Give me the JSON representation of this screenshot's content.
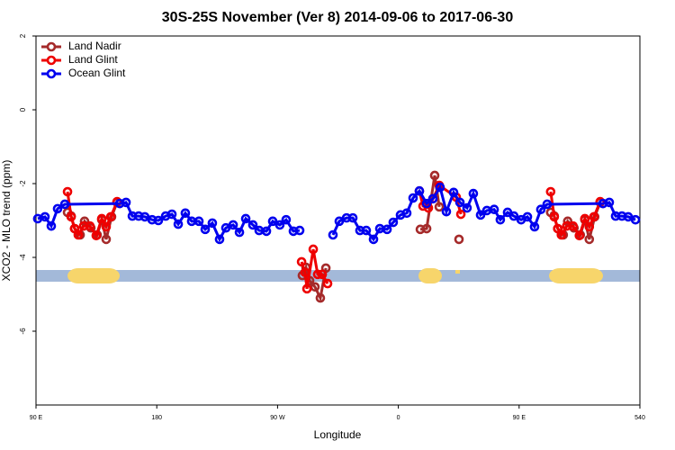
{
  "chart_data": {
    "type": "line",
    "title": "30S-25S November (Ver 8)   2014-09-06 to 2017-06-30",
    "x_label": "Longitude",
    "y_label": "XCO2 - MLO trend (ppm)",
    "xlim": [
      90,
      540
    ],
    "ylim": [
      -8,
      2
    ],
    "xticks": [
      {
        "value": 90,
        "label": "90 E"
      },
      180,
      {
        "value": 270,
        "label": "90 W"
      },
      {
        "value": 360,
        "label": "0"
      },
      {
        "value": 450,
        "label": "90 E"
      },
      540
    ],
    "yticks": [
      2,
      0,
      -2,
      -4,
      -6
    ],
    "legend": "top-left",
    "series": [
      {
        "name": "Land Nadir",
        "color": "#a52a2a",
        "x": [
          113.5,
          116.2,
          118.8,
          122.9,
          126.2,
          130.9,
          135.6,
          139,
          142.3,
          146.3,
          150.4,
          null,
          288.5,
          291.2,
          293.9,
          297.9,
          301.9,
          306,
          null,
          376.4,
          381.1,
          387.1,
          390.5,
          null,
          405.2,
          null,
          473.5,
          476.2,
          478.8,
          482.9,
          486.2,
          490.9,
          495.6,
          499,
          502.3,
          506.3,
          510.4
        ],
        "values": [
          -2.78,
          -2.88,
          -3.22,
          -3.39,
          -3.02,
          -3.2,
          -3.39,
          -2.98,
          -3.51,
          -2.9,
          -2.51,
          null,
          -4.49,
          -4.27,
          -4.63,
          -4.8,
          -5.1,
          -4.29,
          null,
          -3.24,
          -3.22,
          -1.78,
          -2.63,
          null,
          -3.51,
          null,
          -2.78,
          -2.88,
          -3.22,
          -3.39,
          -3.02,
          -3.2,
          -3.39,
          -2.98,
          -3.51,
          -2.9,
          -2.51
        ]
      },
      {
        "name": "Land Glint",
        "color": "#ee0000",
        "x": [
          113.5,
          116.2,
          118.8,
          121.5,
          125.5,
          130.2,
          134.9,
          139,
          142.3,
          145.7,
          150.4,
          null,
          287.9,
          290.5,
          291.9,
          296.6,
          299.9,
          303.3,
          307.3,
          null,
          375.7,
          378.4,
          382.4,
          385.8,
          390.5,
          403.2,
          406.6,
          null,
          473.5,
          476.2,
          478.8,
          481.5,
          485.5,
          490.2,
          494.9,
          499,
          502.3,
          505.7,
          510.4
        ],
        "values": [
          -2.22,
          -2.9,
          -3.22,
          -3.39,
          -3.15,
          -3.15,
          -3.41,
          -2.95,
          -3.17,
          -2.9,
          -2.49,
          null,
          -4.12,
          -4.41,
          -4.85,
          -3.78,
          -4.46,
          -4.46,
          -4.71,
          null,
          -2.2,
          -2.61,
          -2.66,
          -2.41,
          -2.05,
          -2.37,
          -2.83,
          null,
          -2.22,
          -2.9,
          -3.22,
          -3.39,
          -3.15,
          -3.15,
          -3.41,
          -2.95,
          -3.17,
          -2.9,
          -2.49
        ]
      },
      {
        "name": "Ocean Glint",
        "color": "#0000ee",
        "x": [
          91.3,
          96.7,
          101.4,
          106.1,
          111.5,
          152.4,
          157.1,
          161.8,
          166.5,
          171.1,
          176.5,
          181.2,
          186.6,
          191.3,
          196,
          201.3,
          206,
          211.4,
          216.1,
          221.4,
          226.8,
          231.5,
          236.9,
          241.6,
          246.3,
          251.6,
          256.3,
          261.7,
          266.4,
          271.7,
          276.4,
          281.8,
          286.5,
          null,
          311.3,
          316,
          321.4,
          326.1,
          331.4,
          336.1,
          341.5,
          346.2,
          351.6,
          356.2,
          361.6,
          366.3,
          371,
          375.7,
          381.1,
          385.8,
          391.1,
          395.8,
          401.2,
          405.9,
          411.2,
          415.9,
          421.3,
          426,
          431.4,
          436,
          441.4,
          446.1,
          451.5,
          456.2,
          461.5,
          466.2,
          470.9,
          512.5,
          517.2,
          521.9,
          526.6,
          531.3,
          536.7
        ],
        "values": [
          -2.95,
          -2.9,
          -3.15,
          -2.68,
          -2.56,
          -2.54,
          -2.51,
          -2.88,
          -2.88,
          -2.9,
          -2.98,
          -3.0,
          -2.88,
          -2.83,
          -3.1,
          -2.8,
          -3.02,
          -3.02,
          -3.24,
          -3.07,
          -3.51,
          -3.2,
          -3.12,
          -3.32,
          -2.95,
          -3.12,
          -3.27,
          -3.29,
          -3.02,
          -3.12,
          -2.98,
          -3.29,
          -3.27,
          null,
          -3.39,
          -3.02,
          -2.93,
          -2.93,
          -3.27,
          -3.27,
          -3.51,
          -3.22,
          -3.24,
          -3.05,
          -2.85,
          -2.8,
          -2.39,
          -2.2,
          -2.54,
          -2.41,
          -2.1,
          -2.76,
          -2.24,
          -2.51,
          -2.66,
          -2.27,
          -2.85,
          -2.73,
          -2.7,
          -2.98,
          -2.78,
          -2.88,
          -2.98,
          -2.9,
          -3.17,
          -2.7,
          -2.56,
          -2.54,
          -2.51,
          -2.88,
          -2.88,
          -2.9,
          -2.98
        ]
      }
    ]
  }
}
